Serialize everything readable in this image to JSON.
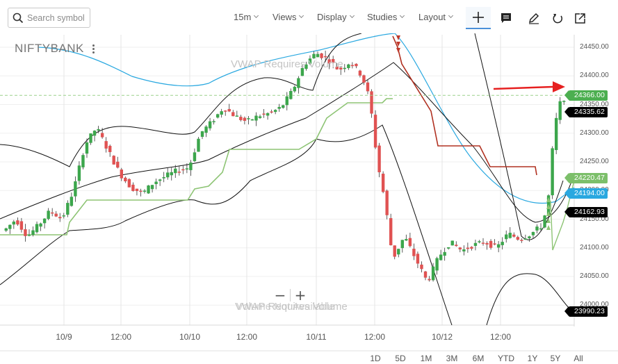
{
  "toolbar": {
    "search_placeholder": "Search symbol",
    "interval": "15m",
    "views": "Views",
    "display": "Display",
    "studies": "Studies",
    "layout": "Layout"
  },
  "chart": {
    "symbol": "NIFTYBANK",
    "watermark_top": "VWAP Requires Volume",
    "watermark_bottom_a": "VWAP Requires Volume",
    "watermark_bottom_b": "Volume Not Available",
    "zoom_out": "−",
    "zoom_in": "+",
    "y_ticks": [
      "24450.00",
      "24400.00",
      "24350.00",
      "24300.00",
      "24250.00",
      "24200.00",
      "24150.00",
      "24100.00",
      "24050.00",
      "24000.00"
    ],
    "x_ticks": [
      "10/9",
      "12:00",
      "10/10",
      "12:00",
      "10/11",
      "12:00",
      "10/12",
      "12:00"
    ],
    "price_tags": [
      {
        "label": "24366.00",
        "color": "#4caf50"
      },
      {
        "label": "24335.62",
        "color": "#000000"
      },
      {
        "label": "24220.47",
        "color": "#7cbf6a"
      },
      {
        "label": "24194.00",
        "color": "#29a8e0"
      },
      {
        "label": "24162.93",
        "color": "#000000"
      },
      {
        "label": "23990.23",
        "color": "#000000"
      }
    ],
    "colors": {
      "up": "#3ca64c",
      "down": "#e05252",
      "vwap": "#29a8e0",
      "bands": "#111111",
      "supertrend": "#8dc474",
      "stop": "#b03020",
      "arrow": "#e62020"
    }
  },
  "range_buttons": [
    "1D",
    "5D",
    "1M",
    "3M",
    "6M",
    "YTD",
    "1Y",
    "5Y",
    "All"
  ]
}
